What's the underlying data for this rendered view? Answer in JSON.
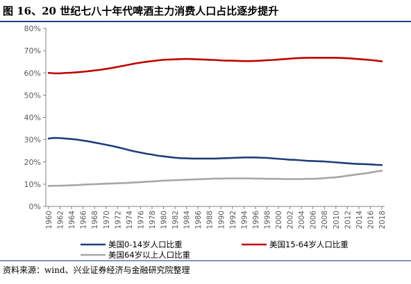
{
  "figure": {
    "title": "图 16、20 世纪七八十年代啤酒主力消费人口占比逐步提升",
    "source": "资料来源：wind、兴业证券经济与金融研究院整理"
  },
  "colors": {
    "series_0_14": "#1f3d7a",
    "series_15_64": "#c00000",
    "series_64_plus": "#a6a6a6",
    "rule": "#1f3c88"
  },
  "chart_data": {
    "type": "line",
    "title": "",
    "xlabel": "",
    "ylabel": "",
    "x": [
      1960,
      1961,
      1962,
      1963,
      1964,
      1965,
      1966,
      1967,
      1968,
      1969,
      1970,
      1971,
      1972,
      1973,
      1974,
      1975,
      1976,
      1977,
      1978,
      1979,
      1980,
      1981,
      1982,
      1983,
      1984,
      1985,
      1986,
      1987,
      1988,
      1989,
      1990,
      1991,
      1992,
      1993,
      1994,
      1995,
      1996,
      1997,
      1998,
      1999,
      2000,
      2001,
      2002,
      2003,
      2004,
      2005,
      2006,
      2007,
      2008,
      2009,
      2010,
      2011,
      2012,
      2013,
      2014,
      2015,
      2016,
      2017,
      2018
    ],
    "x_tick_labels": [
      "1960",
      "1962",
      "1964",
      "1966",
      "1968",
      "1970",
      "1972",
      "1974",
      "1976",
      "1978",
      "1980",
      "1982",
      "1984",
      "1986",
      "1988",
      "1990",
      "1992",
      "1994",
      "1996",
      "1998",
      "2000",
      "2002",
      "2004",
      "2006",
      "2008",
      "2010",
      "2012",
      "2014",
      "2016",
      "2018"
    ],
    "y_tick_labels": [
      "0%",
      "10%",
      "20%",
      "30%",
      "40%",
      "50%",
      "60%",
      "70%",
      "80%"
    ],
    "ylim": [
      0,
      80
    ],
    "y_unit": "%",
    "grid": false,
    "legend_position": "bottom",
    "series": [
      {
        "name": "美国0-14岁人口比重",
        "values": [
          30.5,
          30.8,
          30.7,
          30.5,
          30.3,
          30.0,
          29.6,
          29.2,
          28.7,
          28.2,
          27.7,
          27.2,
          26.6,
          26.0,
          25.3,
          24.7,
          24.2,
          23.7,
          23.3,
          22.8,
          22.5,
          22.2,
          21.9,
          21.7,
          21.6,
          21.5,
          21.5,
          21.5,
          21.5,
          21.5,
          21.6,
          21.7,
          21.8,
          21.9,
          22.0,
          22.0,
          22.0,
          21.9,
          21.8,
          21.6,
          21.4,
          21.2,
          21.0,
          20.9,
          20.7,
          20.5,
          20.4,
          20.3,
          20.2,
          20.0,
          19.8,
          19.6,
          19.4,
          19.2,
          19.1,
          19.0,
          18.9,
          18.7,
          18.6
        ]
      },
      {
        "name": "美国15-64岁人口比重",
        "values": [
          60.0,
          59.8,
          59.8,
          60.0,
          60.1,
          60.3,
          60.5,
          60.8,
          61.1,
          61.4,
          61.8,
          62.2,
          62.7,
          63.2,
          63.7,
          64.2,
          64.6,
          65.0,
          65.3,
          65.6,
          65.9,
          66.0,
          66.1,
          66.2,
          66.3,
          66.2,
          66.1,
          66.0,
          65.9,
          65.8,
          65.6,
          65.5,
          65.5,
          65.4,
          65.3,
          65.3,
          65.4,
          65.5,
          65.7,
          65.8,
          66.0,
          66.2,
          66.4,
          66.6,
          66.7,
          66.8,
          66.8,
          66.8,
          66.8,
          66.8,
          66.8,
          66.7,
          66.6,
          66.4,
          66.2,
          66.0,
          65.8,
          65.5,
          65.2
        ]
      },
      {
        "name": "美国64岁以上人口比重",
        "values": [
          9.2,
          9.3,
          9.3,
          9.4,
          9.5,
          9.6,
          9.8,
          9.9,
          10.0,
          10.1,
          10.2,
          10.3,
          10.4,
          10.5,
          10.6,
          10.8,
          10.9,
          11.1,
          11.2,
          11.4,
          11.6,
          11.7,
          11.8,
          11.9,
          12.0,
          12.1,
          12.2,
          12.3,
          12.4,
          12.5,
          12.5,
          12.6,
          12.6,
          12.6,
          12.6,
          12.6,
          12.5,
          12.5,
          12.4,
          12.4,
          12.4,
          12.3,
          12.3,
          12.3,
          12.3,
          12.4,
          12.4,
          12.5,
          12.7,
          12.9,
          13.1,
          13.4,
          13.8,
          14.1,
          14.5,
          14.8,
          15.2,
          15.7,
          16.0
        ]
      }
    ]
  }
}
